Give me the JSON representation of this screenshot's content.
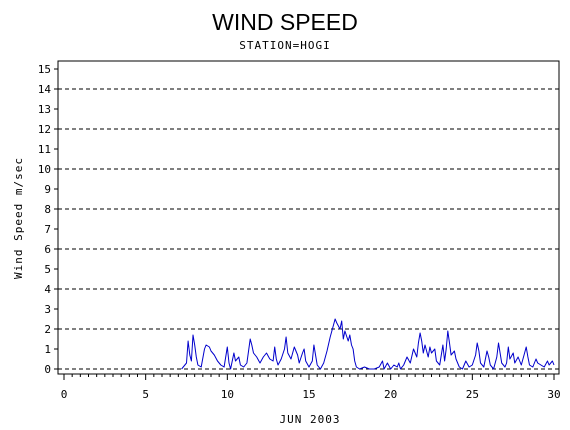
{
  "chart_data": {
    "type": "line",
    "title": "WIND SPEED",
    "subtitle": "STATION=HOGI",
    "xlabel": "JUN 2003",
    "ylabel": "Wind Speed m/sec",
    "xlim": [
      0,
      30
    ],
    "ylim": [
      0,
      15
    ],
    "x_ticks": [
      0,
      5,
      10,
      15,
      20,
      25,
      30
    ],
    "x_minor_step": 0.5,
    "y_ticks": [
      0,
      1,
      2,
      3,
      4,
      5,
      6,
      7,
      8,
      9,
      10,
      11,
      12,
      13,
      14,
      15
    ],
    "dashed_gridlines_y": [
      2,
      4,
      6,
      8,
      10,
      12,
      14
    ],
    "zero_line_dashed": true,
    "series": [
      {
        "color": "#0000cc",
        "points": [
          [
            7.2,
            0.0
          ],
          [
            7.5,
            0.3
          ],
          [
            7.6,
            1.4
          ],
          [
            7.7,
            0.7
          ],
          [
            7.8,
            0.4
          ],
          [
            7.9,
            1.7
          ],
          [
            8.0,
            1.2
          ],
          [
            8.1,
            0.6
          ],
          [
            8.2,
            0.2
          ],
          [
            8.4,
            0.1
          ],
          [
            8.6,
            1.0
          ],
          [
            8.7,
            1.2
          ],
          [
            8.9,
            1.1
          ],
          [
            9.0,
            0.9
          ],
          [
            9.2,
            0.7
          ],
          [
            9.4,
            0.4
          ],
          [
            9.6,
            0.2
          ],
          [
            9.8,
            0.1
          ],
          [
            9.9,
            0.6
          ],
          [
            10.0,
            1.1
          ],
          [
            10.1,
            0.3
          ],
          [
            10.2,
            0.0
          ],
          [
            10.4,
            0.8
          ],
          [
            10.5,
            0.4
          ],
          [
            10.7,
            0.6
          ],
          [
            10.8,
            0.2
          ],
          [
            11.0,
            0.1
          ],
          [
            11.2,
            0.3
          ],
          [
            11.4,
            1.5
          ],
          [
            11.5,
            1.2
          ],
          [
            11.6,
            0.8
          ],
          [
            11.8,
            0.6
          ],
          [
            12.0,
            0.3
          ],
          [
            12.2,
            0.6
          ],
          [
            12.4,
            0.8
          ],
          [
            12.6,
            0.5
          ],
          [
            12.8,
            0.4
          ],
          [
            12.9,
            1.1
          ],
          [
            13.0,
            0.5
          ],
          [
            13.1,
            0.2
          ],
          [
            13.3,
            0.5
          ],
          [
            13.5,
            1.0
          ],
          [
            13.6,
            1.6
          ],
          [
            13.7,
            0.8
          ],
          [
            13.9,
            0.5
          ],
          [
            14.1,
            1.1
          ],
          [
            14.3,
            0.7
          ],
          [
            14.4,
            0.3
          ],
          [
            14.6,
            0.8
          ],
          [
            14.7,
            1.0
          ],
          [
            14.8,
            0.4
          ],
          [
            15.0,
            0.1
          ],
          [
            15.2,
            0.4
          ],
          [
            15.3,
            1.2
          ],
          [
            15.5,
            0.2
          ],
          [
            15.7,
            0.0
          ],
          [
            15.9,
            0.3
          ],
          [
            16.1,
            0.9
          ],
          [
            16.3,
            1.6
          ],
          [
            16.5,
            2.2
          ],
          [
            16.6,
            2.5
          ],
          [
            16.7,
            2.3
          ],
          [
            16.9,
            2.0
          ],
          [
            17.0,
            2.4
          ],
          [
            17.1,
            1.5
          ],
          [
            17.2,
            1.9
          ],
          [
            17.4,
            1.4
          ],
          [
            17.5,
            1.7
          ],
          [
            17.6,
            1.2
          ],
          [
            17.7,
            1.0
          ],
          [
            17.8,
            0.4
          ],
          [
            17.9,
            0.1
          ],
          [
            18.1,
            0.0
          ],
          [
            18.4,
            0.1
          ],
          [
            18.7,
            0.0
          ],
          [
            19.0,
            0.0
          ],
          [
            19.3,
            0.1
          ],
          [
            19.5,
            0.4
          ],
          [
            19.6,
            0.0
          ],
          [
            19.8,
            0.3
          ],
          [
            20.0,
            0.0
          ],
          [
            20.2,
            0.2
          ],
          [
            20.4,
            0.1
          ],
          [
            20.5,
            0.3
          ],
          [
            20.6,
            0.0
          ],
          [
            20.8,
            0.2
          ],
          [
            21.0,
            0.6
          ],
          [
            21.2,
            0.3
          ],
          [
            21.4,
            1.0
          ],
          [
            21.6,
            0.6
          ],
          [
            21.7,
            1.3
          ],
          [
            21.8,
            1.8
          ],
          [
            21.9,
            1.4
          ],
          [
            22.0,
            0.8
          ],
          [
            22.1,
            1.2
          ],
          [
            22.3,
            0.6
          ],
          [
            22.4,
            1.1
          ],
          [
            22.5,
            0.8
          ],
          [
            22.7,
            1.0
          ],
          [
            22.8,
            0.4
          ],
          [
            23.0,
            0.2
          ],
          [
            23.1,
            0.7
          ],
          [
            23.2,
            1.2
          ],
          [
            23.3,
            0.4
          ],
          [
            23.4,
            1.0
          ],
          [
            23.5,
            1.9
          ],
          [
            23.6,
            1.3
          ],
          [
            23.7,
            0.7
          ],
          [
            23.9,
            0.9
          ],
          [
            24.0,
            0.5
          ],
          [
            24.2,
            0.1
          ],
          [
            24.4,
            0.0
          ],
          [
            24.6,
            0.4
          ],
          [
            24.8,
            0.1
          ],
          [
            25.0,
            0.2
          ],
          [
            25.2,
            0.7
          ],
          [
            25.3,
            1.3
          ],
          [
            25.4,
            0.9
          ],
          [
            25.5,
            0.3
          ],
          [
            25.7,
            0.1
          ],
          [
            25.8,
            0.5
          ],
          [
            25.9,
            0.9
          ],
          [
            26.0,
            0.6
          ],
          [
            26.1,
            0.2
          ],
          [
            26.3,
            0.0
          ],
          [
            26.5,
            0.6
          ],
          [
            26.6,
            1.3
          ],
          [
            26.7,
            0.8
          ],
          [
            26.8,
            0.3
          ],
          [
            27.0,
            0.1
          ],
          [
            27.1,
            0.3
          ],
          [
            27.2,
            1.1
          ],
          [
            27.3,
            0.5
          ],
          [
            27.5,
            0.8
          ],
          [
            27.6,
            0.3
          ],
          [
            27.8,
            0.6
          ],
          [
            28.0,
            0.2
          ],
          [
            28.2,
            0.8
          ],
          [
            28.3,
            1.1
          ],
          [
            28.4,
            0.6
          ],
          [
            28.5,
            0.2
          ],
          [
            28.7,
            0.1
          ],
          [
            28.9,
            0.5
          ],
          [
            29.0,
            0.3
          ],
          [
            29.2,
            0.2
          ],
          [
            29.4,
            0.1
          ],
          [
            29.6,
            0.4
          ],
          [
            29.7,
            0.2
          ],
          [
            29.9,
            0.4
          ],
          [
            30.0,
            0.2
          ]
        ]
      }
    ]
  }
}
